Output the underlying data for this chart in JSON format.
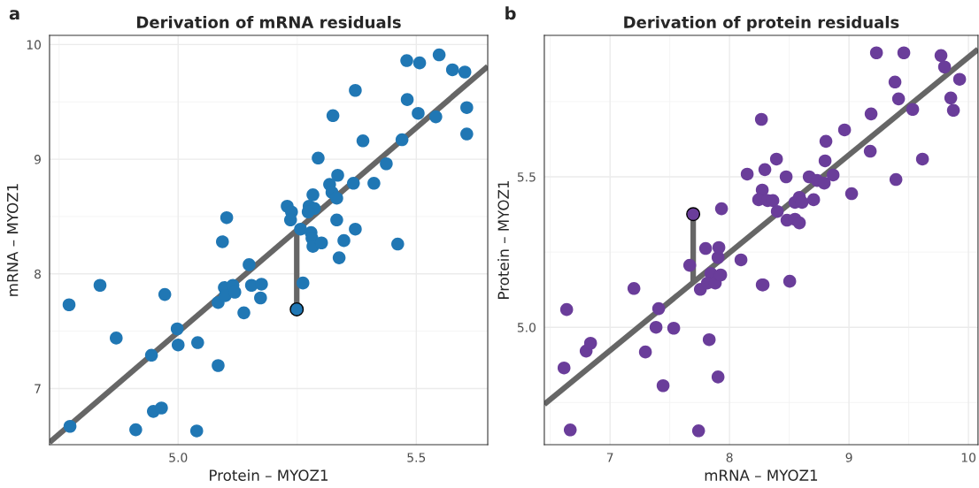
{
  "chart_data": [
    {
      "type": "scatter",
      "title": "Derivation of mRNA residuals",
      "xlabel": "Protein – MYOZ1",
      "ylabel": "mRNA – MYOZ1",
      "annotations": [
        "a"
      ],
      "xlim": [
        4.73,
        5.65
      ],
      "ylim": [
        6.51,
        10.08
      ],
      "xticks": [
        {
          "value": 5,
          "label": "5.0"
        },
        5.5
      ],
      "yticks": [
        7,
        8,
        9,
        10
      ],
      "grid": true,
      "marker": "circle",
      "series": [
        {
          "type": "line",
          "marker": "none",
          "color": "#666666",
          "x": [
            4.73,
            5.65
          ],
          "values": [
            6.53,
            9.81
          ]
        },
        {
          "type": "line",
          "marker": "none",
          "color": "#666666",
          "x": [
            5.249,
            5.249
          ],
          "values": [
            7.69,
            8.37
          ]
        },
        {
          "color": "#2077b4",
          "x": [
            4.771,
            4.773,
            4.836,
            4.87,
            4.911,
            4.944,
            4.948,
            4.965,
            4.972,
            4.998,
            5.0,
            5.041,
            5.039,
            5.084,
            5.084,
            5.093,
            5.102,
            5.097,
            5.099,
            5.115,
            5.119,
            5.138,
            5.149,
            5.154,
            5.173,
            5.175,
            5.48,
            5.507,
            5.548,
            5.576,
            5.602,
            5.372,
            5.481,
            5.504,
            5.541,
            5.606,
            5.606,
            5.325,
            5.388,
            5.47,
            5.294,
            5.437,
            5.335,
            5.318,
            5.323,
            5.333,
            5.368,
            5.411,
            5.283,
            5.229,
            5.238,
            5.236,
            5.275,
            5.286,
            5.273,
            5.257,
            5.333,
            5.279,
            5.281,
            5.283,
            5.301,
            5.372,
            5.348,
            5.338,
            5.461,
            5.262
          ],
          "values": [
            7.73,
            6.67,
            7.9,
            7.44,
            6.64,
            7.29,
            6.8,
            6.83,
            7.82,
            7.52,
            7.38,
            7.4,
            6.63,
            7.2,
            7.75,
            8.28,
            8.49,
            7.88,
            7.81,
            7.9,
            7.84,
            7.66,
            8.08,
            7.9,
            7.79,
            7.91,
            9.86,
            9.84,
            9.91,
            9.78,
            9.76,
            9.6,
            9.52,
            9.4,
            9.37,
            9.45,
            9.22,
            9.38,
            9.16,
            9.17,
            9.01,
            8.96,
            8.86,
            8.78,
            8.71,
            8.66,
            8.79,
            8.79,
            8.69,
            8.59,
            8.54,
            8.47,
            8.59,
            8.57,
            8.54,
            8.39,
            8.47,
            8.36,
            8.31,
            8.24,
            8.27,
            8.39,
            8.29,
            8.14,
            8.26,
            7.92
          ]
        },
        {
          "color": "#2077b4",
          "x": [
            5.249
          ],
          "values": [
            7.69
          ]
        }
      ]
    },
    {
      "type": "scatter",
      "title": "Derivation of protein residuals",
      "xlabel": "mRNA – MYOZ1",
      "ylabel": "Protein – MYOZ1",
      "annotations": [
        "b"
      ],
      "xlim": [
        6.45,
        10.08
      ],
      "ylim": [
        4.61,
        5.97
      ],
      "xticks": [
        7,
        8,
        9,
        10
      ],
      "yticks": [
        {
          "value": 5,
          "label": "5.0"
        },
        5.5
      ],
      "grid": true,
      "marker": "circle",
      "series": [
        {
          "type": "line",
          "marker": "none",
          "color": "#666666",
          "x": [
            6.45,
            10.08
          ],
          "values": [
            4.744,
            5.924
          ]
        },
        {
          "type": "line",
          "marker": "none",
          "color": "#666666",
          "x": [
            7.696,
            7.696
          ],
          "values": [
            5.376,
            5.15
          ]
        },
        {
          "color": "#6a3d9a",
          "x": [
            6.637,
            6.667,
            6.615,
            6.8,
            6.837,
            7.2,
            7.296,
            7.385,
            7.407,
            7.444,
            7.533,
            7.667,
            7.741,
            7.756,
            7.8,
            7.83,
            7.844,
            7.815,
            7.881,
            7.926,
            7.904,
            7.911,
            7.904,
            7.933,
            8.096,
            8.148,
            8.267,
            8.274,
            8.296,
            8.393,
            8.474,
            8.274,
            8.244,
            8.319,
            8.363,
            8.4,
            8.481,
            8.548,
            8.585,
            8.548,
            8.585,
            8.607,
            8.281,
            8.504,
            8.704,
            8.667,
            8.733,
            8.793,
            8.867,
            8.8,
            8.807,
            8.963,
            9.022,
            9.178,
            9.185,
            9.23,
            9.393,
            9.385,
            9.415,
            9.459,
            9.533,
            9.615,
            9.77,
            9.8,
            9.926,
            9.852,
            9.874
          ],
          "values": [
            5.059,
            4.659,
            4.865,
            4.921,
            4.947,
            5.129,
            4.918,
            5.0,
            5.062,
            4.806,
            4.997,
            5.206,
            4.656,
            5.126,
            5.262,
            4.959,
            5.179,
            5.147,
            5.147,
            5.174,
            5.232,
            5.265,
            4.835,
            5.394,
            5.224,
            5.509,
            5.691,
            5.141,
            5.524,
            5.559,
            5.5,
            5.456,
            5.424,
            5.421,
            5.421,
            5.385,
            5.356,
            5.359,
            5.347,
            5.415,
            5.432,
            5.415,
            5.141,
            5.153,
            5.424,
            5.5,
            5.488,
            5.479,
            5.506,
            5.553,
            5.618,
            5.656,
            5.444,
            5.585,
            5.709,
            5.912,
            5.491,
            5.815,
            5.759,
            5.912,
            5.724,
            5.559,
            5.903,
            5.865,
            5.824,
            5.762,
            5.721
          ]
        },
        {
          "color": "#6a3d9a",
          "x": [
            7.696
          ],
          "values": [
            5.376
          ]
        }
      ]
    }
  ]
}
